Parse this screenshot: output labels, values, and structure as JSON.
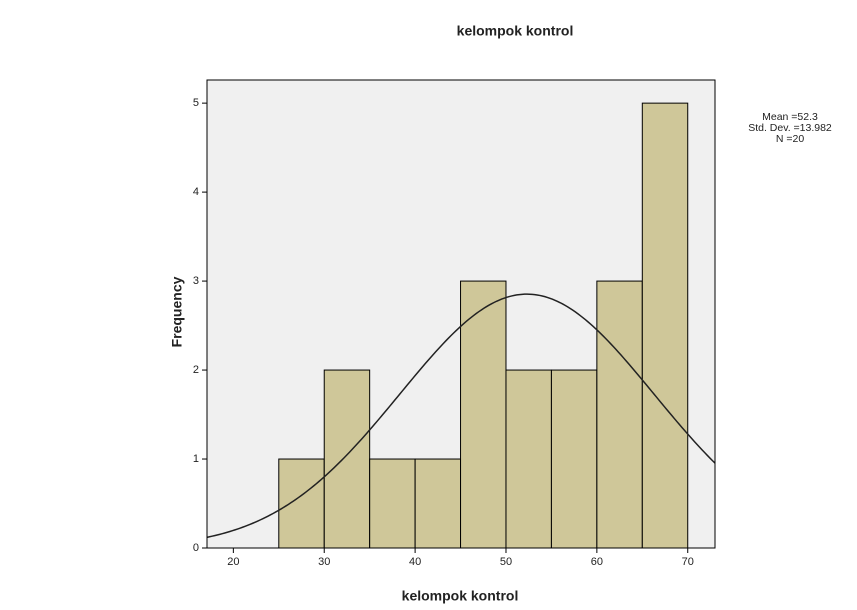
{
  "chart_data": {
    "type": "histogram",
    "title": "kelompok kontrol",
    "x_label": "kelompok kontrol",
    "y_label": "Frequency",
    "bins": [
      25,
      30,
      35,
      40,
      45,
      50,
      55,
      60,
      65,
      70
    ],
    "values": [
      1,
      2,
      1,
      1,
      3,
      2,
      2,
      3,
      5
    ],
    "color": "#c9c08a",
    "xlim": [
      17.1,
      73
    ],
    "xticks": [
      20,
      30,
      40,
      50,
      60,
      70
    ],
    "ylim": [
      0,
      5.26
    ],
    "yticks": [
      0,
      1,
      2,
      3,
      4,
      5
    ],
    "stats": [
      {
        "value": 52.3,
        "label": "Mean =52.3"
      },
      {
        "value": 13.982,
        "label": "Std. Dev. =13.982"
      },
      {
        "value": 20,
        "label": "N =20"
      }
    ],
    "normal_curve": true
  }
}
